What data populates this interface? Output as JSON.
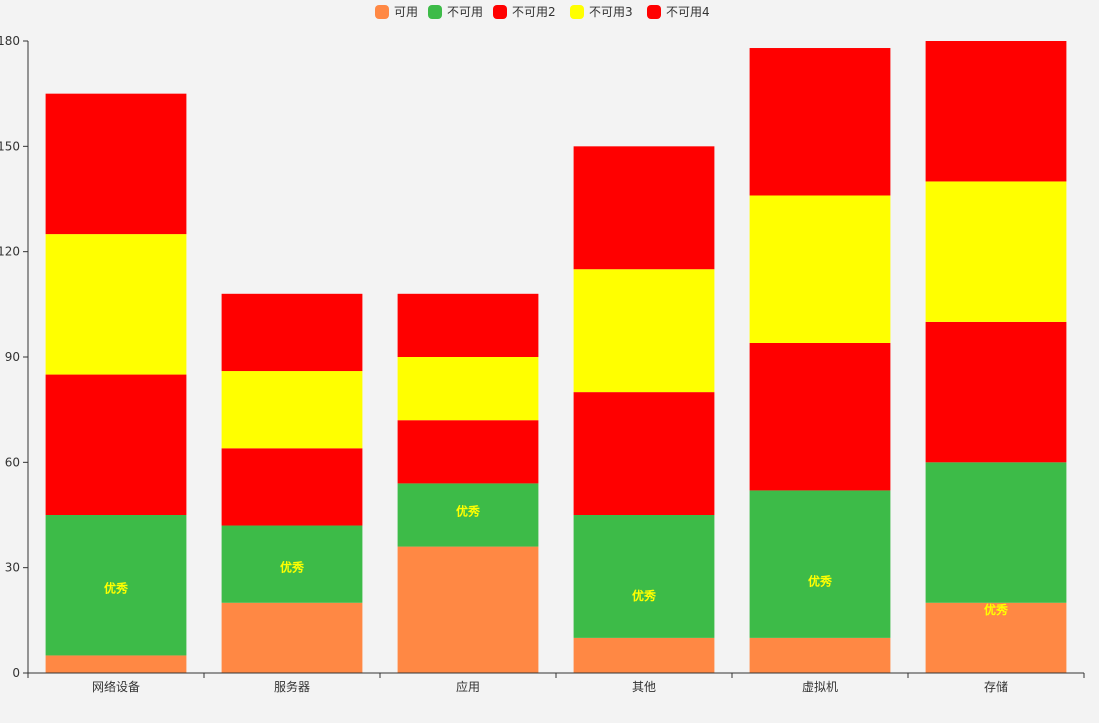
{
  "chart_data": {
    "type": "bar",
    "stacked": true,
    "title": "",
    "xlabel": "",
    "ylabel": "",
    "ylim": [
      0,
      180
    ],
    "yticks": [
      0,
      30,
      60,
      90,
      120,
      150,
      180
    ],
    "categories": [
      "网络设备",
      "服务器",
      "应用",
      "其他",
      "虚拟机",
      "存储"
    ],
    "legend_position": "top-center",
    "series": [
      {
        "name": "可用",
        "color": "#ff8844",
        "values": [
          5,
          20,
          36,
          10,
          10,
          20
        ]
      },
      {
        "name": "不可用",
        "color": "#3dbb48",
        "values": [
          40,
          22,
          18,
          35,
          42,
          40
        ]
      },
      {
        "name": "不可用2",
        "color": "#ff0000",
        "values": [
          40,
          22,
          18,
          35,
          42,
          40
        ]
      },
      {
        "name": "不可用3",
        "color": "#ffff00",
        "values": [
          40,
          22,
          18,
          35,
          42,
          40
        ]
      },
      {
        "name": "不可用4",
        "color": "#ff0000",
        "values": [
          40,
          22,
          18,
          35,
          42,
          40
        ]
      }
    ],
    "data_labels": [
      {
        "category": "网络设备",
        "text": "优秀",
        "value": 24
      },
      {
        "category": "服务器",
        "text": "优秀",
        "value": 30
      },
      {
        "category": "应用",
        "text": "优秀",
        "value": 46
      },
      {
        "category": "其他",
        "text": "优秀",
        "value": 22
      },
      {
        "category": "虚拟机",
        "text": "优秀",
        "value": 26
      },
      {
        "category": "存储",
        "text": "优秀",
        "value": 18
      }
    ]
  }
}
